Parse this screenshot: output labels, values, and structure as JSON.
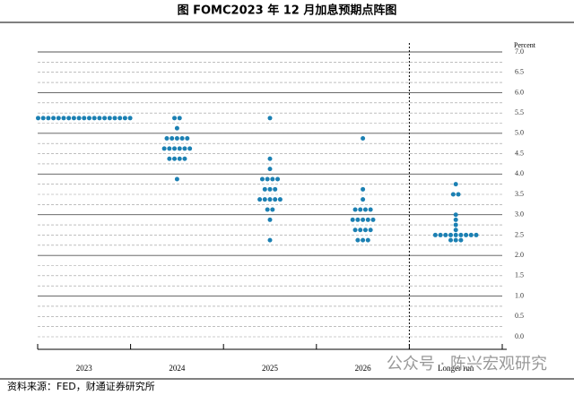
{
  "chart_data": {
    "type": "dot",
    "title": "图    FOMC2023 年 12 月加息预期点阵图",
    "y_label": "Percent",
    "color": "#1b80b3",
    "categories": [
      "2023",
      "2024",
      "2025",
      "2026",
      "Longer run"
    ],
    "values": [
      [
        5.375,
        5.375,
        5.375,
        5.375,
        5.375,
        5.375,
        5.375,
        5.375,
        5.375,
        5.375,
        5.375,
        5.375,
        5.375,
        5.375,
        5.375,
        5.375,
        5.375,
        5.375,
        5.375
      ],
      [
        5.375,
        5.375,
        5.125,
        4.875,
        4.875,
        4.875,
        4.875,
        4.875,
        4.625,
        4.625,
        4.625,
        4.625,
        4.625,
        4.625,
        4.375,
        4.375,
        4.375,
        4.375,
        3.875
      ],
      [
        5.375,
        4.375,
        4.125,
        3.875,
        3.875,
        3.875,
        3.875,
        3.625,
        3.625,
        3.625,
        3.375,
        3.375,
        3.375,
        3.375,
        3.375,
        3.125,
        3.125,
        2.875,
        2.375
      ],
      [
        4.875,
        3.625,
        3.375,
        3.125,
        3.125,
        3.125,
        3.125,
        2.875,
        2.875,
        2.875,
        2.875,
        2.875,
        2.625,
        2.625,
        2.625,
        2.625,
        2.375,
        2.375,
        2.375
      ],
      [
        3.75,
        3.5,
        3.5,
        3.0,
        2.875,
        2.75,
        2.625,
        2.5,
        2.5,
        2.5,
        2.5,
        2.5,
        2.5,
        2.5,
        2.5,
        2.5,
        2.375,
        2.375,
        2.375
      ]
    ],
    "ylim": [
      0,
      7
    ],
    "yticks": [
      {
        "value": 0,
        "label": "0.0"
      },
      {
        "value": 0.5,
        "label": "0.5"
      },
      {
        "value": 1,
        "label": "1.0"
      },
      {
        "value": 1.5,
        "label": "1.5"
      },
      {
        "value": 2,
        "label": "2.0"
      },
      {
        "value": 2.5,
        "label": "2.5"
      },
      {
        "value": 3,
        "label": "3.0"
      },
      {
        "value": 3.5,
        "label": "3.5"
      },
      {
        "value": 4,
        "label": "4.0"
      },
      {
        "value": 4.5,
        "label": "4.5"
      },
      {
        "value": 5,
        "label": "5.0"
      },
      {
        "value": 5.5,
        "label": "5.5"
      },
      {
        "value": 6,
        "label": "6.0"
      },
      {
        "value": 6.5,
        "label": "6.5"
      },
      {
        "value": 7,
        "label": "7.0"
      }
    ],
    "grid": true,
    "source": "资料来源：FED，财通证券研究所",
    "watermark": "公众号 · 陈兴宏观研究"
  }
}
